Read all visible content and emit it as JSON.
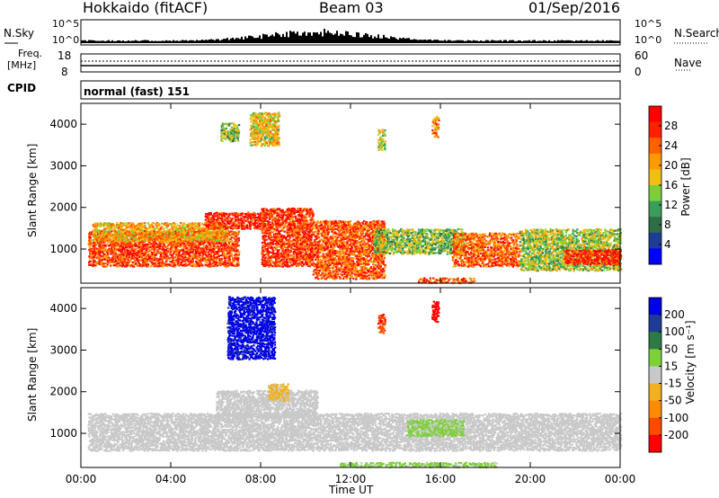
{
  "header": {
    "title": "Hokkaido (fitACF)",
    "beam": "Beam 03",
    "date": "01/Sep/2016"
  },
  "top_panels": {
    "nsky_label": "N.Sky",
    "nsky_ticks": [
      "10^5",
      "10^0"
    ],
    "nsearch_label": "N.Search",
    "nsearch_ticks": [
      "10^5",
      "10^0"
    ],
    "freq_label": "Freq.",
    "freq_unit": "[MHz]",
    "freq_ticks": [
      "18",
      "8"
    ],
    "nave_label": "Nave",
    "nave_ticks": [
      "60",
      "0"
    ],
    "cpid_label": "CPID",
    "cpid_value": "normal (fast) 151"
  },
  "colors": {
    "power_scale": [
      "#0000ff",
      "#1e3c96",
      "#2e6e46",
      "#3a9e5a",
      "#7ccf3a",
      "#f0c010",
      "#ff9a00",
      "#ff6000",
      "#ff2000",
      "#ff0000"
    ],
    "velocity_scale": [
      "#0000e6",
      "#1e3c96",
      "#2e7a46",
      "#7dd038",
      "#c8c8c8",
      "#f0b020",
      "#ff8c00",
      "#ff4a00",
      "#ff0000"
    ]
  },
  "chart_data": [
    {
      "type": "heatmap",
      "title": "Power",
      "xlabel": "",
      "ylabel": "Slant Range [km]",
      "xlim": [
        "00:00",
        "00:00"
      ],
      "xticks": [
        "00:00",
        "04:00",
        "08:00",
        "12:00",
        "16:00",
        "20:00",
        "00:00"
      ],
      "ylim": [
        180,
        4500
      ],
      "yticks": [
        1000,
        2000,
        3000,
        4000
      ],
      "colorbar_label": "Power [dB]",
      "colorbar_ticks": [
        "28",
        "24",
        "20",
        "16",
        "12",
        "8",
        "4"
      ],
      "colorbar_range": [
        0,
        32
      ],
      "regions": [
        {
          "t0": 0.3,
          "t1": 7.0,
          "r0": 600,
          "r1": 1450,
          "value": 26
        },
        {
          "t0": 0.5,
          "t1": 6.5,
          "r0": 1200,
          "r1": 1650,
          "value": 20
        },
        {
          "t0": 5.5,
          "t1": 8.2,
          "r0": 1500,
          "r1": 1900,
          "value": 28
        },
        {
          "t0": 8.0,
          "t1": 10.3,
          "r0": 600,
          "r1": 2000,
          "value": 27
        },
        {
          "t0": 10.3,
          "t1": 13.5,
          "r0": 300,
          "r1": 1700,
          "value": 25
        },
        {
          "t0": 13.0,
          "t1": 17.0,
          "r0": 900,
          "r1": 1500,
          "value": 14
        },
        {
          "t0": 15.0,
          "t1": 17.5,
          "r0": 200,
          "r1": 320,
          "value": 25
        },
        {
          "t0": 16.5,
          "t1": 19.5,
          "r0": 600,
          "r1": 1400,
          "value": 24
        },
        {
          "t0": 19.5,
          "t1": 24.0,
          "r0": 500,
          "r1": 1500,
          "value": 15
        },
        {
          "t0": 21.5,
          "t1": 24.0,
          "r0": 650,
          "r1": 1000,
          "value": 28
        },
        {
          "t0": 7.5,
          "t1": 8.8,
          "r0": 3500,
          "r1": 4300,
          "value": 18
        },
        {
          "t0": 6.2,
          "t1": 7.0,
          "r0": 3600,
          "r1": 4050,
          "value": 14
        },
        {
          "t0": 13.2,
          "t1": 13.5,
          "r0": 3400,
          "r1": 3900,
          "value": 16
        },
        {
          "t0": 15.6,
          "t1": 15.9,
          "r0": 3700,
          "r1": 4200,
          "value": 22
        }
      ]
    },
    {
      "type": "heatmap",
      "title": "Velocity",
      "xlabel": "Time UT",
      "ylabel": "Slant Range [km]",
      "xlim": [
        "00:00",
        "00:00"
      ],
      "xticks": [
        "00:00",
        "04:00",
        "08:00",
        "12:00",
        "16:00",
        "20:00",
        "00:00"
      ],
      "ylim": [
        180,
        4500
      ],
      "yticks": [
        1000,
        2000,
        3000,
        4000
      ],
      "colorbar_label": "Velocity [m s⁻¹]",
      "colorbar_ticks": [
        "200",
        "100",
        "50",
        "15",
        "-15",
        "-50",
        "-100",
        "-200"
      ],
      "colorbar_range": [
        -250,
        250
      ],
      "regions": [
        {
          "t0": 0.3,
          "t1": 24.0,
          "r0": 600,
          "r1": 1500,
          "value": 0
        },
        {
          "t0": 6.0,
          "t1": 10.5,
          "r0": 1400,
          "r1": 2050,
          "value": 0
        },
        {
          "t0": 8.3,
          "t1": 9.2,
          "r0": 1800,
          "r1": 2200,
          "value": -40
        },
        {
          "t0": 14.5,
          "t1": 17.0,
          "r0": 950,
          "r1": 1350,
          "value": 40
        },
        {
          "t0": 11.5,
          "t1": 18.5,
          "r0": 200,
          "r1": 320,
          "value": 40
        },
        {
          "t0": 6.5,
          "t1": 8.6,
          "r0": 2800,
          "r1": 4300,
          "value": 210
        },
        {
          "t0": 13.2,
          "t1": 13.5,
          "r0": 3400,
          "r1": 3900,
          "value": -180
        },
        {
          "t0": 15.6,
          "t1": 15.9,
          "r0": 3700,
          "r1": 4200,
          "value": -220
        }
      ]
    }
  ]
}
